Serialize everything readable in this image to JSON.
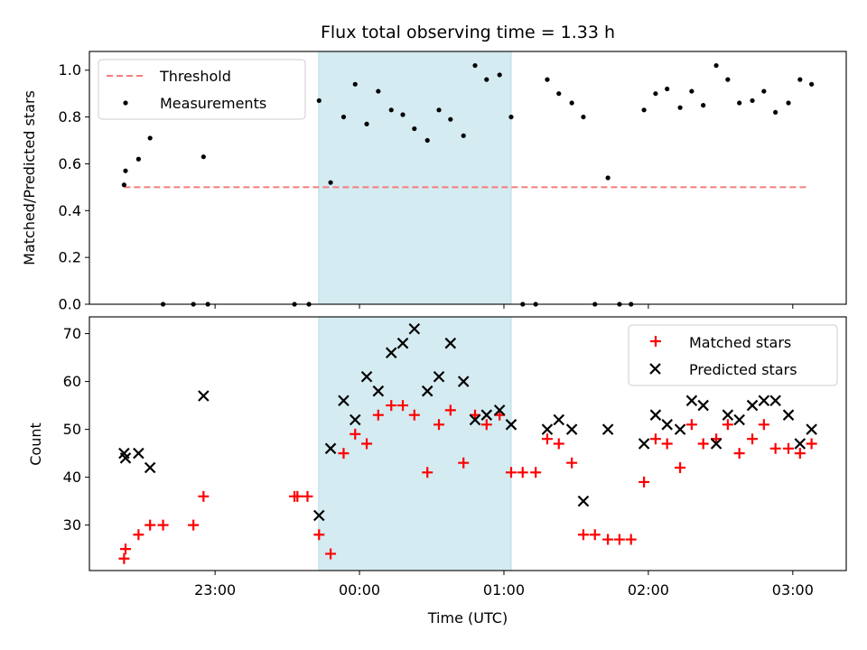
{
  "chart_data": [
    {
      "type": "scatter",
      "title": "Flux total observing time = 1.33 h",
      "xlabel": "",
      "ylabel": "Matched/Predicted stars",
      "x_unit": "hours relative to 00:00 UTC",
      "xlim": [
        -1.87,
        3.37
      ],
      "ylim": [
        0.0,
        1.08
      ],
      "yticks": [
        0.0,
        0.2,
        0.4,
        0.6,
        0.8,
        1.0
      ],
      "ytick_labels": [
        "0.0",
        "0.2",
        "0.4",
        "0.6",
        "0.8",
        "1.0"
      ],
      "xticks": [
        -1,
        0,
        1,
        2,
        3
      ],
      "shaded_interval": [
        -0.283,
        1.05
      ],
      "shade_color": "#d4ebf1",
      "legend_location": "upper left",
      "series": [
        {
          "name": "Threshold",
          "kind": "dashed-line",
          "color": "#f47c7c",
          "x": [
            -1.63,
            3.1
          ],
          "y": [
            0.5,
            0.5
          ]
        },
        {
          "name": "Measurements",
          "kind": "dots",
          "color": "#000000",
          "x": [
            -1.63,
            -1.62,
            -1.53,
            -1.45,
            -1.36,
            -1.15,
            -1.08,
            -1.05,
            -0.45,
            -0.35,
            -0.28,
            -0.2,
            -0.11,
            -0.03,
            0.05,
            0.13,
            0.22,
            0.3,
            0.38,
            0.47,
            0.55,
            0.63,
            0.72,
            0.8,
            0.88,
            0.97,
            1.05,
            1.13,
            1.22,
            1.3,
            1.38,
            1.47,
            1.55,
            1.63,
            1.72,
            1.8,
            1.88,
            1.97,
            2.05,
            2.13,
            2.22,
            2.3,
            2.38,
            2.47,
            2.55,
            2.63,
            2.72,
            2.8,
            2.88,
            2.97,
            3.05,
            3.13
          ],
          "y": [
            0.51,
            0.57,
            0.62,
            0.71,
            0.0,
            0.0,
            0.63,
            0.0,
            0.0,
            0.0,
            0.87,
            0.52,
            0.8,
            0.94,
            0.77,
            0.91,
            0.83,
            0.81,
            0.75,
            0.7,
            0.83,
            0.79,
            0.72,
            1.02,
            0.96,
            0.98,
            0.8,
            0.0,
            0.0,
            0.96,
            0.9,
            0.86,
            0.8,
            0.0,
            0.54,
            0.0,
            0.0,
            0.83,
            0.9,
            0.92,
            0.84,
            0.91,
            0.85,
            1.02,
            0.96,
            0.86,
            0.87,
            0.91,
            0.82,
            0.86,
            0.96,
            0.94
          ]
        }
      ]
    },
    {
      "type": "scatter",
      "title": "",
      "xlabel": "Time (UTC)",
      "ylabel": "Count",
      "x_unit": "hours relative to 00:00 UTC",
      "xlim": [
        -1.87,
        3.37
      ],
      "ylim": [
        20.5,
        73.5
      ],
      "yticks": [
        30,
        40,
        50,
        60,
        70
      ],
      "ytick_labels": [
        "30",
        "40",
        "50",
        "60",
        "70"
      ],
      "xticks": [
        -1,
        0,
        1,
        2,
        3
      ],
      "xtick_labels": [
        "23:00",
        "00:00",
        "01:00",
        "02:00",
        "03:00"
      ],
      "shaded_interval": [
        -0.283,
        1.05
      ],
      "shade_color": "#d4ebf1",
      "legend_location": "upper right",
      "series": [
        {
          "name": "Matched stars",
          "kind": "plus",
          "color": "#ff0000",
          "x": [
            -1.63,
            -1.62,
            -1.53,
            -1.45,
            -1.36,
            -1.15,
            -1.08,
            -0.45,
            -0.43,
            -0.36,
            -0.28,
            -0.2,
            -0.11,
            -0.03,
            0.05,
            0.13,
            0.22,
            0.3,
            0.38,
            0.47,
            0.55,
            0.63,
            0.72,
            0.8,
            0.88,
            0.97,
            1.05,
            1.13,
            1.22,
            1.3,
            1.38,
            1.47,
            1.55,
            1.63,
            1.72,
            1.8,
            1.88,
            1.97,
            2.05,
            2.13,
            2.22,
            2.3,
            2.38,
            2.47,
            2.55,
            2.63,
            2.72,
            2.8,
            2.88,
            2.97,
            3.05,
            3.13
          ],
          "y": [
            23,
            25,
            28,
            30,
            30,
            30,
            36,
            36,
            36,
            36,
            28,
            24,
            45,
            49,
            47,
            53,
            55,
            55,
            53,
            41,
            51,
            54,
            43,
            53,
            51,
            53,
            41,
            41,
            41,
            48,
            47,
            43,
            28,
            28,
            27,
            27,
            27,
            39,
            48,
            47,
            42,
            51,
            47,
            48,
            51,
            45,
            48,
            51,
            46,
            46,
            45,
            47
          ]
        },
        {
          "name": "Predicted stars",
          "kind": "x",
          "color": "#000000",
          "x": [
            -1.63,
            -1.62,
            -1.53,
            -1.45,
            -1.08,
            -0.28,
            -0.2,
            -0.11,
            -0.03,
            0.05,
            0.13,
            0.22,
            0.3,
            0.38,
            0.47,
            0.55,
            0.63,
            0.72,
            0.8,
            0.88,
            0.97,
            1.05,
            1.3,
            1.38,
            1.47,
            1.55,
            1.72,
            1.97,
            2.05,
            2.13,
            2.22,
            2.3,
            2.38,
            2.47,
            2.55,
            2.63,
            2.72,
            2.8,
            2.88,
            2.97,
            3.05,
            3.13
          ],
          "y": [
            45,
            44,
            45,
            42,
            57,
            32,
            46,
            56,
            52,
            61,
            58,
            66,
            68,
            71,
            58,
            61,
            68,
            60,
            52,
            53,
            54,
            51,
            50,
            52,
            50,
            35,
            50,
            47,
            53,
            51,
            50,
            56,
            55,
            47,
            53,
            52,
            55,
            56,
            56,
            53,
            47,
            50
          ]
        }
      ]
    }
  ]
}
